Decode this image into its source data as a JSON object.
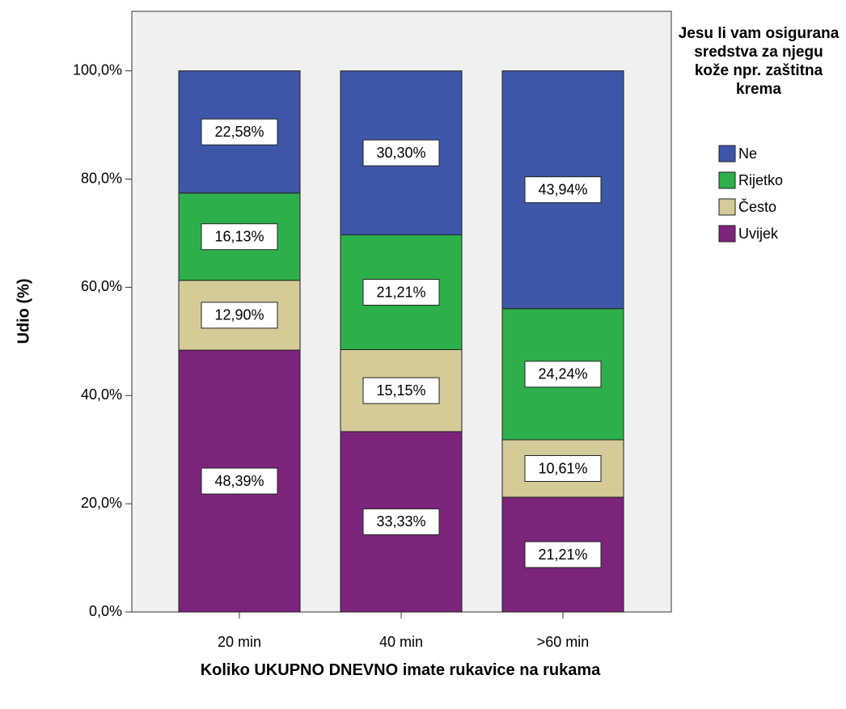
{
  "chart_data": {
    "type": "stacked_bar",
    "x_label": "Koliko UKUPNO DNEVNO imate rukavice na rukama",
    "y_label": "Udio (%)",
    "legend_title": "Jesu li vam osigurana sredstva za njegu kože npr. zaštitna krema",
    "categories": [
      "20 min",
      "40 min",
      ">60 min"
    ],
    "series": [
      {
        "name": "Ne",
        "color": "#3d56a8",
        "values": [
          22.58,
          30.3,
          43.94
        ],
        "value_labels": [
          "22,58%",
          "30,30%",
          "43,94%"
        ]
      },
      {
        "name": "Rijetko",
        "color": "#2db04b",
        "values": [
          16.13,
          21.21,
          24.24
        ],
        "value_labels": [
          "16,13%",
          "21,21%",
          "24,24%"
        ]
      },
      {
        "name": "Često",
        "color": "#d4cc98",
        "values": [
          12.9,
          15.15,
          10.61
        ],
        "value_labels": [
          "12,90%",
          "15,15%",
          "10,61%"
        ]
      },
      {
        "name": "Uvijek",
        "color": "#7b2479",
        "values": [
          48.39,
          33.33,
          21.21
        ],
        "value_labels": [
          "48,39%",
          "33,33%",
          "21,21%"
        ]
      }
    ],
    "ylim": [
      0,
      111
    ],
    "yticks": [
      {
        "value": 0,
        "label": "0,0%"
      },
      {
        "value": 20,
        "label": "20,0%"
      },
      {
        "value": 40,
        "label": "40,0%"
      },
      {
        "value": 60,
        "label": "60,0%"
      },
      {
        "value": 80,
        "label": "80,0%"
      },
      {
        "value": 100,
        "label": "100,0%"
      }
    ],
    "legend_position": "right"
  }
}
